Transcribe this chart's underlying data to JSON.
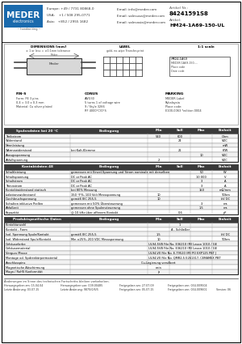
{
  "bg_color": "#ffffff",
  "logo_blue": "#1a6aad",
  "logo_dark": "#1a3a6a",
  "dark_header": "#3a3a3a",
  "light_row": "#f2f2f2",
  "white_row": "#ffffff",
  "title_text": "HM24-1A69-150-UL",
  "article_nr": "84241591S8",
  "header_contact": [
    [
      "Europe: +49 / 7731 80868-0",
      "Email: info@meder.com"
    ],
    [
      "USA:    +1 / 508 295-0771",
      "Email: salesusa@meder.com"
    ],
    [
      "Asia:   +852 / 2955 1682",
      "Email: salesasia@meder.com"
    ]
  ],
  "table1_header": [
    "Spulendaten bei 20 °C",
    "Bedingung",
    "Min",
    "Soll",
    "Max",
    "Einheit"
  ],
  "table1_rows": [
    [
      "Treibstrom",
      "",
      "540",
      "600",
      "",
      "Ohm"
    ],
    [
      "Widerstand",
      "",
      "",
      "24",
      "",
      "VDC"
    ],
    [
      "Nennleistung",
      "",
      "",
      "",
      "",
      "mW"
    ],
    [
      "Wärmewiderstand",
      "bei Kalt-Klemme",
      "",
      "21",
      "",
      "K/W"
    ],
    [
      "Anzugsspannung",
      "",
      "",
      "",
      "10",
      "VDC"
    ],
    [
      "Abfallspannung",
      "",
      "2",
      "",
      "",
      "VDC"
    ]
  ],
  "table2_header": [
    "Kontaktdaten 48",
    "Bedingung",
    "Min",
    "Soll",
    "Max",
    "Einheit"
  ],
  "table2_rows": [
    [
      "Schaltleistung",
      "gemessen mit Einzel-Spannung und Strom nominale mit derselben",
      "",
      "",
      "50",
      "W"
    ],
    [
      "Schaltspannung",
      "DC or Peak AC",
      "",
      "",
      "10 000",
      "V"
    ],
    [
      "Schaltstrom",
      "DC or Peak AC",
      "",
      "",
      "3",
      "A"
    ],
    [
      "Trennstrom",
      "DC or Peak AC",
      "",
      "",
      "3",
      "A"
    ],
    [
      "Kontaktwiderstand statisch",
      "bei 80% Messung",
      "",
      "",
      "150",
      "mΩ/mm"
    ],
    [
      "Isolationswiderstand",
      "150 °F%, 100 Volt Messspannung",
      "10",
      "",
      "",
      "TOhm"
    ],
    [
      "Durchbruchspannung",
      "gemäß IEC 255-5",
      "10",
      "",
      "",
      "kV DC"
    ],
    [
      "Schalten inklusive Prellen",
      "gemessen mit 50% Übersteuerung",
      "",
      "",
      "3",
      "ms"
    ],
    [
      "Abfallzeit",
      "gemessen ohne Spulensteuerung",
      "",
      "",
      "1.5",
      "ms"
    ],
    [
      "Kapazität",
      "@ 10 kHz über offenem Kontakt",
      "",
      "0.6",
      "",
      "pF"
    ]
  ],
  "table3_header": [
    "Produktspezifische Daten",
    "Bedingung",
    "Min",
    "Soll",
    "Max",
    "Einheit"
  ],
  "table3_rows": [
    [
      "Kontaktanzahl",
      "",
      "",
      "1",
      "",
      ""
    ],
    [
      "Kontakt - Form",
      "",
      "",
      "A - Schließer",
      "",
      ""
    ],
    [
      "Isol. Spannung Spule/Kontakt",
      "gemäß IEC 255-5",
      "1.5",
      "",
      "",
      "kV DC"
    ],
    [
      "Isol. Widerstand Spule/Kontakt",
      "Min ±25%, 200 VDC Messspannung",
      "10",
      "",
      "",
      "TOhm"
    ],
    [
      "Gehäusefarbe",
      "",
      "UL94-5VB File No. E36210 (M) Lexan 1010 / GE",
      "",
      "",
      ""
    ],
    [
      "Gehäusematerial",
      "",
      "UL94-5VB File No. E36210 (M) Lexan 1010 / GE, UL94-V0 File No. E-79520 (M) PO EXP125 PBT J-Hankura,",
      "",
      "",
      ""
    ],
    [
      "Verguss Masse",
      "",
      "UL94-V0 File No. E-79520 (M) PO EXP125 PBT J-Hankura,",
      "",
      "",
      ""
    ],
    [
      "Montage od. Spdrenkörpermaterial",
      "",
      "UL94-V0 File No. QMR2-5 E261317, CERAMEX PBT",
      "",
      "",
      ""
    ],
    [
      "Anschlusspins",
      "",
      "Cu-Legierung versilbert",
      "",
      "",
      ""
    ],
    [
      "Magnetische Abschirmung",
      "",
      "nein",
      "",
      "",
      ""
    ],
    [
      "Magn./ RoHS Konformität",
      "",
      "ja",
      "",
      "",
      ""
    ]
  ],
  "footer_text": "Änderungen im Sinne des technischen Fortschritts bleiben vorbehalten.",
  "footer_rows": [
    [
      "Herausgegeben am:",
      "15.04.04",
      "Herausgegeben von:",
      "009.00485",
      "Freigegeben am:",
      "27.07.09",
      "Freigegeben von:",
      "034.009504",
      "",
      ""
    ],
    [
      "Letzte Änderung:",
      "03.07.15",
      "Letzte Änderung:",
      "9870/0/6/5",
      "Freigegeben am:",
      "05.07.15",
      "Freigegeben von:",
      "034.009601",
      "Version:",
      "06"
    ]
  ]
}
